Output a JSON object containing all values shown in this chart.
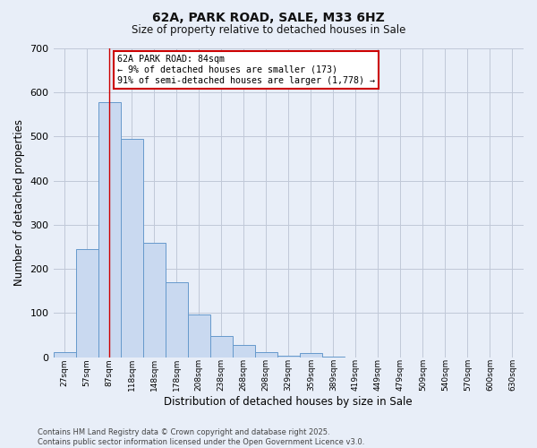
{
  "title_line1": "62A, PARK ROAD, SALE, M33 6HZ",
  "title_line2": "Size of property relative to detached houses in Sale",
  "xlabel": "Distribution of detached houses by size in Sale",
  "ylabel": "Number of detached properties",
  "bar_labels": [
    "27sqm",
    "57sqm",
    "87sqm",
    "118sqm",
    "148sqm",
    "178sqm",
    "208sqm",
    "238sqm",
    "268sqm",
    "298sqm",
    "329sqm",
    "359sqm",
    "389sqm",
    "419sqm",
    "449sqm",
    "479sqm",
    "509sqm",
    "540sqm",
    "570sqm",
    "600sqm",
    "630sqm"
  ],
  "bar_values": [
    12,
    245,
    578,
    495,
    260,
    170,
    97,
    48,
    27,
    12,
    3,
    10,
    2,
    0,
    0,
    0,
    0,
    0,
    0,
    0,
    0
  ],
  "bar_color": "#c9d9f0",
  "bar_edge_color": "#6699cc",
  "background_color": "#e8eef8",
  "plot_bg_color": "#e8eef8",
  "vline_x_index": 2,
  "vline_color": "#cc0000",
  "annotation_line1": "62A PARK ROAD: 84sqm",
  "annotation_line2": "← 9% of detached houses are smaller (173)",
  "annotation_line3": "91% of semi-detached houses are larger (1,778) →",
  "annotation_box_color": "#ffffff",
  "annotation_box_edge": "#cc0000",
  "ylim": [
    0,
    700
  ],
  "yticks": [
    0,
    100,
    200,
    300,
    400,
    500,
    600,
    700
  ],
  "footer_line1": "Contains HM Land Registry data © Crown copyright and database right 2025.",
  "footer_line2": "Contains public sector information licensed under the Open Government Licence v3.0.",
  "grid_color": "#c0c8d8"
}
